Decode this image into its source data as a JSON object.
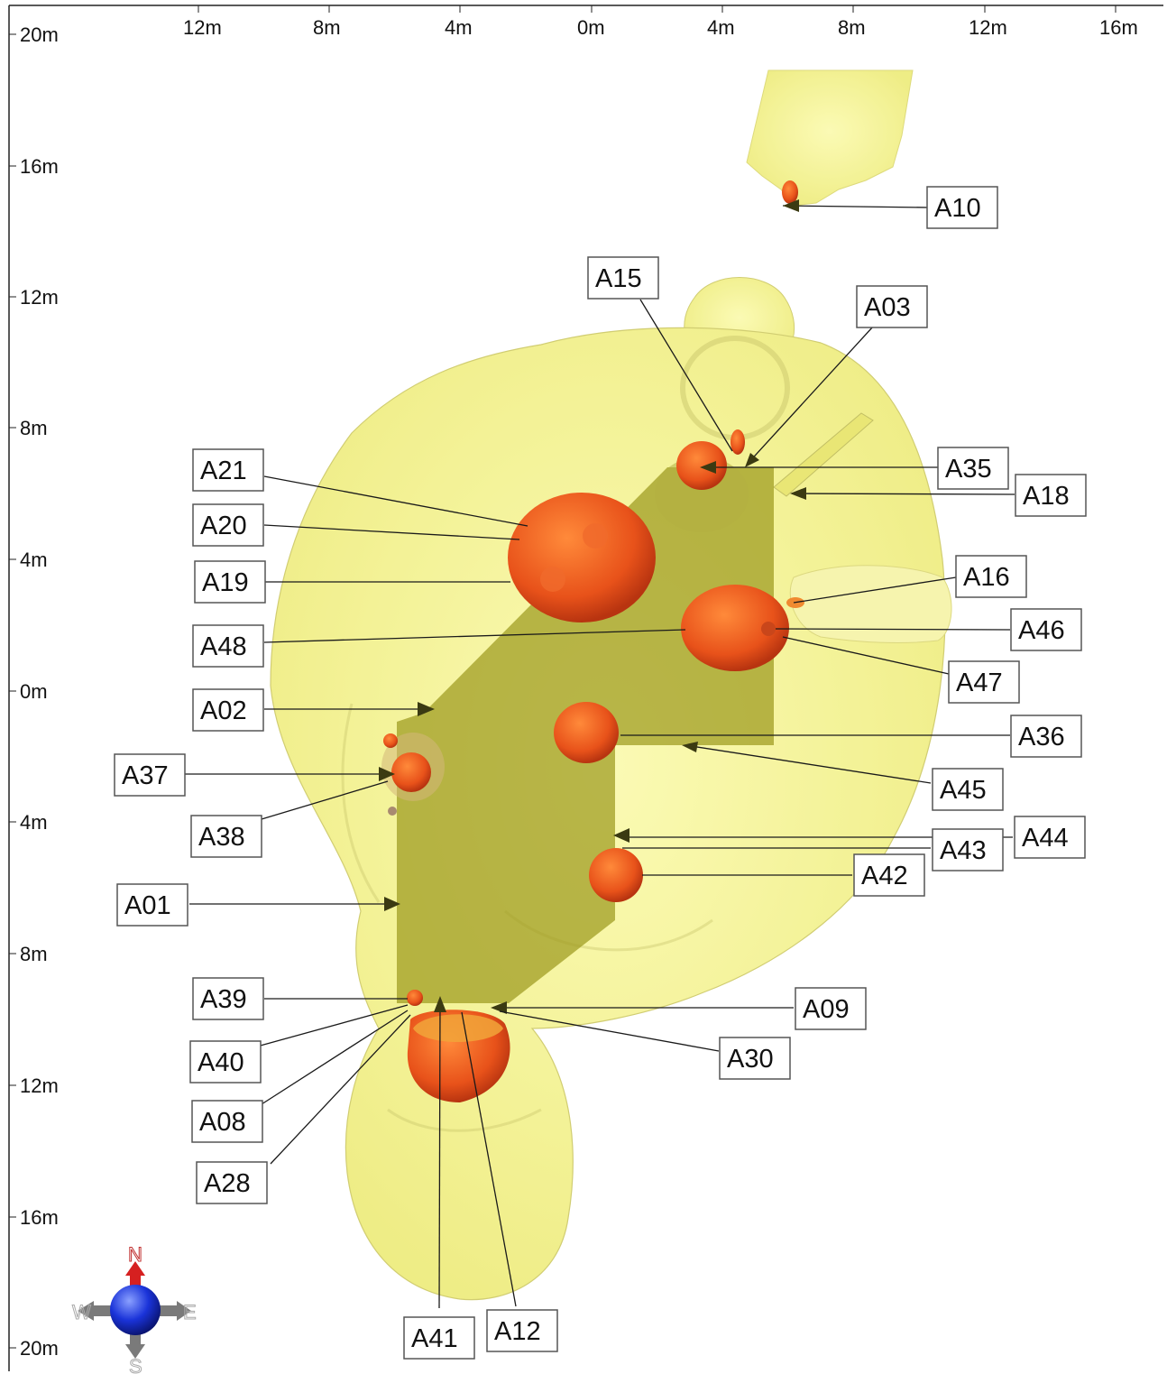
{
  "axes": {
    "x_ticks": [
      "12m",
      "8m",
      "4m",
      "0m",
      "4m",
      "8m",
      "12m",
      "16m"
    ],
    "y_ticks": [
      "20m",
      "16m",
      "12m",
      "8m",
      "4m",
      "0m",
      "4m",
      "8m",
      "12m",
      "16m",
      "20m"
    ]
  },
  "compass": {
    "north": "N",
    "south": "S",
    "east": "E",
    "west": "W"
  },
  "labels": {
    "A10": "A10",
    "A15": "A15",
    "A03": "A03",
    "A35": "A35",
    "A18": "A18",
    "A21": "A21",
    "A20": "A20",
    "A19": "A19",
    "A16": "A16",
    "A46": "A46",
    "A48": "A48",
    "A47": "A47",
    "A02": "A02",
    "A36": "A36",
    "A37": "A37",
    "A45": "A45",
    "A38": "A38",
    "A44": "A44",
    "A43": "A43",
    "A42": "A42",
    "A01": "A01",
    "A39": "A39",
    "A09": "A09",
    "A40": "A40",
    "A30": "A30",
    "A08": "A08",
    "A28": "A28",
    "A41": "A41",
    "A12": "A12"
  },
  "colors": {
    "volume_fill": "#f2f07a",
    "volume_edge": "#c9c55a",
    "panel_fill": "#9c9a1e",
    "anomaly": "#e8521a",
    "anomaly_dark": "#b83410",
    "compass_sphere": "#1a33d9",
    "compass_north": "#d62020",
    "compass_arm": "#7a7a7a"
  }
}
